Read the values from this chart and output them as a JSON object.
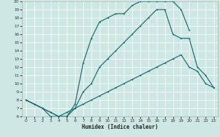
{
  "xlabel": "Humidex (Indice chaleur)",
  "xlim": [
    -0.5,
    23.5
  ],
  "ylim": [
    6,
    20
  ],
  "xticks": [
    0,
    1,
    2,
    3,
    4,
    5,
    6,
    7,
    8,
    9,
    10,
    11,
    12,
    13,
    14,
    15,
    16,
    17,
    18,
    19,
    20,
    21,
    22,
    23
  ],
  "yticks": [
    6,
    7,
    8,
    9,
    10,
    11,
    12,
    13,
    14,
    15,
    16,
    17,
    18,
    19,
    20
  ],
  "background_color": "#cde8e4",
  "grid_color": "#ffffff",
  "line_color": "#1a6b6b",
  "line1_x": [
    0,
    1,
    2,
    3,
    4,
    5,
    6,
    7,
    8,
    9,
    10,
    11,
    12,
    13,
    14,
    15,
    16,
    17,
    18,
    19,
    20,
    21,
    22,
    23
  ],
  "line1_y": [
    8.0,
    7.5,
    7.0,
    6.5,
    6.0,
    6.5,
    7.0,
    7.5,
    8.0,
    8.5,
    9.0,
    9.5,
    10.0,
    10.5,
    11.0,
    11.5,
    12.0,
    12.5,
    13.0,
    13.5,
    12.0,
    11.5,
    10.0,
    9.5
  ],
  "line2_x": [
    0,
    1,
    2,
    3,
    4,
    5,
    6,
    7,
    8,
    9,
    10,
    11,
    12,
    13,
    14,
    15,
    16,
    17,
    18,
    19,
    20,
    21,
    22,
    23
  ],
  "line2_y": [
    8.0,
    7.5,
    7.0,
    6.0,
    6.0,
    6.0,
    7.0,
    9.0,
    10.0,
    12.0,
    13.0,
    14.0,
    15.0,
    16.0,
    17.0,
    18.0,
    19.0,
    19.0,
    16.0,
    15.5,
    15.5,
    12.0,
    11.0,
    9.5
  ],
  "line3_x": [
    0,
    1,
    2,
    3,
    4,
    5,
    6,
    7,
    8,
    9,
    10,
    11,
    12,
    13,
    14,
    15,
    16,
    17,
    18,
    19,
    20
  ],
  "line3_y": [
    8.0,
    7.5,
    7.0,
    6.5,
    6.0,
    6.0,
    7.5,
    12.5,
    15.5,
    17.5,
    18.0,
    18.5,
    18.5,
    19.5,
    20.0,
    20.0,
    20.0,
    20.0,
    20.0,
    19.0,
    16.5
  ]
}
